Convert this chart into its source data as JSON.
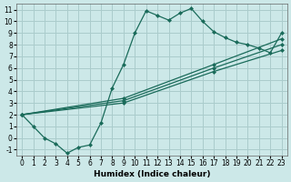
{
  "xlabel": "Humidex (Indice chaleur)",
  "bg_color": "#cce8e8",
  "grid_color": "#aacccc",
  "line_color": "#1a6b5a",
  "xlim": [
    -0.5,
    23.5
  ],
  "ylim": [
    -1.5,
    11.5
  ],
  "xticks": [
    0,
    1,
    2,
    3,
    4,
    5,
    6,
    7,
    8,
    9,
    10,
    11,
    12,
    13,
    14,
    15,
    16,
    17,
    18,
    19,
    20,
    21,
    22,
    23
  ],
  "yticks": [
    -1,
    0,
    1,
    2,
    3,
    4,
    5,
    6,
    7,
    8,
    9,
    10,
    11
  ],
  "series0_x": [
    0,
    1,
    2,
    3,
    4,
    5,
    6,
    7,
    8,
    9,
    10,
    11,
    12,
    13,
    14,
    15,
    16,
    17,
    18,
    19,
    20,
    21,
    22,
    23
  ],
  "series0_y": [
    2,
    1,
    0,
    -0.5,
    -1.3,
    -0.8,
    -0.6,
    1.3,
    4.3,
    6.3,
    9.0,
    10.9,
    10.5,
    10.1,
    10.7,
    11.1,
    10.0,
    9.1,
    8.6,
    8.2,
    8.0,
    7.7,
    7.3,
    9.0
  ],
  "line1_x": [
    0,
    23
  ],
  "line1_y": [
    2,
    8.5
  ],
  "line2_x": [
    0,
    23
  ],
  "line2_y": [
    2,
    7.5
  ],
  "line3_x": [
    0,
    23
  ],
  "line3_y": [
    2,
    8.0
  ],
  "marker_on_lines": [
    {
      "x": [
        0,
        9,
        17,
        23
      ],
      "y": [
        2,
        3.4,
        6.3,
        8.5
      ]
    },
    {
      "x": [
        0,
        9,
        17,
        23
      ],
      "y": [
        2,
        3.0,
        5.7,
        7.5
      ]
    },
    {
      "x": [
        0,
        9,
        17,
        23
      ],
      "y": [
        2,
        3.2,
        6.0,
        8.0
      ]
    }
  ],
  "xlabel_fontsize": 6.5,
  "tick_fontsize": 5.5
}
